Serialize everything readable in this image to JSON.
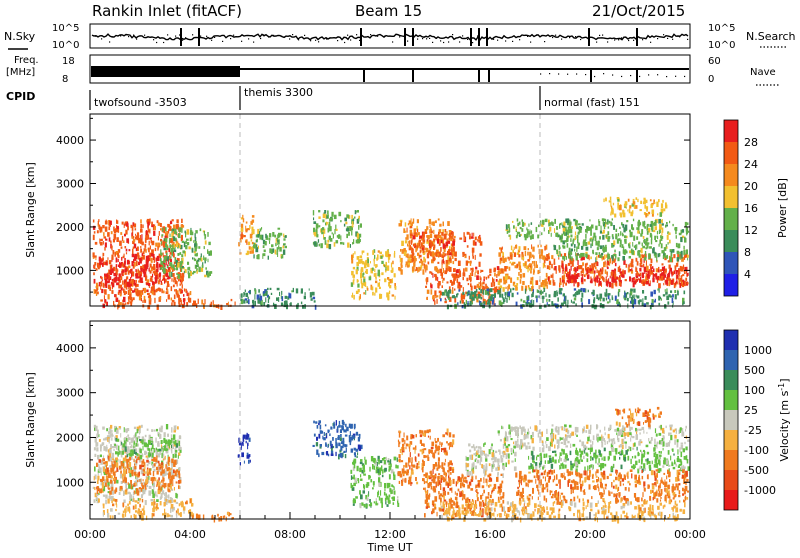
{
  "header": {
    "station": "Rankin Inlet (fitACF)",
    "beam": "Beam 15",
    "date": "21/Oct/2015"
  },
  "noise_panel": {
    "left_label": "N.Sky",
    "left_ticks": [
      "10^5",
      "10^0"
    ],
    "right_label": "N.Search",
    "right_ticks": [
      "10^5",
      "10^0"
    ]
  },
  "freq_panel": {
    "left_label_1": "Freq.",
    "left_label_2": "[MHz]",
    "left_ticks": [
      "18",
      "8"
    ],
    "right_label": "Nave",
    "right_ticks": [
      "60",
      "0"
    ]
  },
  "cpid": {
    "label": "CPID",
    "segments": [
      {
        "name": "twofsound -3503",
        "start_hour": 0
      },
      {
        "name": "themis 3300",
        "start_hour": 6
      },
      {
        "name": "normal (fast) 151",
        "start_hour": 18
      }
    ]
  },
  "colors": {
    "power": [
      "#1f1fe6",
      "#2f55b8",
      "#3a8c5a",
      "#63b04a",
      "#f2c030",
      "#f58a1e",
      "#f25a14",
      "#e81e1e"
    ],
    "velocity": [
      "#1f2fb0",
      "#2f64b0",
      "#3a8c5a",
      "#63c040",
      "#c8c8bc",
      "#f5b040",
      "#f07a1e",
      "#e84a18",
      "#e81a1a"
    ]
  },
  "chart_data": [
    {
      "type": "heatmap",
      "name": "power",
      "xlabel": "",
      "ylabel": "Slant Range [km]",
      "xlim": [
        0,
        24
      ],
      "ylim": [
        180,
        4600
      ],
      "yticks": [
        1000,
        2000,
        3000,
        4000
      ],
      "colorbar": {
        "label": "Power [dB]",
        "range": [
          0,
          32
        ],
        "ticks": [
          "4",
          "8",
          "12",
          "16",
          "20",
          "24",
          "28"
        ]
      },
      "regions": [
        {
          "x0": 0.1,
          "x1": 3.7,
          "y0": 500,
          "y1": 2200,
          "level": 6
        },
        {
          "x0": 0.3,
          "x1": 3.2,
          "y0": 700,
          "y1": 1400,
          "level": 7
        },
        {
          "x0": 0.4,
          "x1": 4.0,
          "y0": 200,
          "y1": 600,
          "level": 6
        },
        {
          "x0": 2.8,
          "x1": 4.8,
          "y0": 900,
          "y1": 2000,
          "level": 3
        },
        {
          "x0": 4.0,
          "x1": 5.8,
          "y0": 200,
          "y1": 350,
          "level": 6
        },
        {
          "x0": 5.9,
          "x1": 6.5,
          "y0": 1400,
          "y1": 2300,
          "level": 5
        },
        {
          "x0": 6.5,
          "x1": 7.8,
          "y0": 1300,
          "y1": 2000,
          "level": 3
        },
        {
          "x0": 6.0,
          "x1": 9.0,
          "y0": 200,
          "y1": 600,
          "level": 2
        },
        {
          "x0": 8.9,
          "x1": 10.8,
          "y0": 1600,
          "y1": 2400,
          "level": 3
        },
        {
          "x0": 10.4,
          "x1": 12.2,
          "y0": 400,
          "y1": 1500,
          "level": 4
        },
        {
          "x0": 12.3,
          "x1": 14.5,
          "y0": 1000,
          "y1": 2200,
          "level": 5
        },
        {
          "x0": 12.8,
          "x1": 15.6,
          "y0": 1200,
          "y1": 1900,
          "level": 6
        },
        {
          "x0": 13.4,
          "x1": 16.4,
          "y0": 300,
          "y1": 1100,
          "level": 6
        },
        {
          "x0": 16.3,
          "x1": 18.4,
          "y0": 600,
          "y1": 1600,
          "level": 5
        },
        {
          "x0": 16.6,
          "x1": 19.6,
          "y0": 1800,
          "y1": 2200,
          "level": 3
        },
        {
          "x0": 18.2,
          "x1": 23.9,
          "y0": 700,
          "y1": 1400,
          "level": 6
        },
        {
          "x0": 19.0,
          "x1": 23.9,
          "y0": 700,
          "y1": 1100,
          "level": 7
        },
        {
          "x0": 18.5,
          "x1": 23.9,
          "y0": 1300,
          "y1": 2200,
          "level": 3
        },
        {
          "x0": 20.5,
          "x1": 23.0,
          "y0": 2300,
          "y1": 2700,
          "level": 4
        },
        {
          "x0": 14.0,
          "x1": 23.8,
          "y0": 200,
          "y1": 600,
          "level": 2
        }
      ]
    },
    {
      "type": "heatmap",
      "name": "velocity",
      "xlabel": "Time UT",
      "ylabel": "Slant Range [km]",
      "xlim": [
        0,
        24
      ],
      "ylim": [
        180,
        4600
      ],
      "yticks": [
        1000,
        2000,
        3000,
        4000
      ],
      "xticks": [
        "00:00",
        "04:00",
        "08:00",
        "12:00",
        "16:00",
        "20:00",
        "00:00"
      ],
      "colorbar": {
        "label": "Velocity [m s",
        "label_exp": "-1",
        "ticks": [
          "1000",
          "500",
          "100",
          "25",
          "-25",
          "-100",
          "-500",
          "-1000"
        ]
      },
      "regions": [
        {
          "x0": 0.1,
          "x1": 3.6,
          "y0": 600,
          "y1": 2300,
          "level": 4
        },
        {
          "x0": 0.2,
          "x1": 3.6,
          "y0": 800,
          "y1": 1600,
          "level": 6
        },
        {
          "x0": 1.0,
          "x1": 3.6,
          "y0": 1600,
          "y1": 2000,
          "level": 3
        },
        {
          "x0": 0.5,
          "x1": 4.2,
          "y0": 250,
          "y1": 650,
          "level": 5
        },
        {
          "x0": 4.2,
          "x1": 5.8,
          "y0": 200,
          "y1": 350,
          "level": 6
        },
        {
          "x0": 5.9,
          "x1": 6.4,
          "y0": 1400,
          "y1": 2200,
          "level": 0
        },
        {
          "x0": 8.9,
          "x1": 10.8,
          "y0": 1600,
          "y1": 2400,
          "level": 1
        },
        {
          "x0": 10.4,
          "x1": 12.3,
          "y0": 500,
          "y1": 1600,
          "level": 3
        },
        {
          "x0": 12.3,
          "x1": 14.5,
          "y0": 1000,
          "y1": 2200,
          "level": 6
        },
        {
          "x0": 13.3,
          "x1": 16.5,
          "y0": 300,
          "y1": 1200,
          "level": 6
        },
        {
          "x0": 15.0,
          "x1": 17.0,
          "y0": 1200,
          "y1": 1900,
          "level": 4
        },
        {
          "x0": 16.3,
          "x1": 23.9,
          "y0": 1800,
          "y1": 2300,
          "level": 4
        },
        {
          "x0": 17.5,
          "x1": 23.9,
          "y0": 1300,
          "y1": 1800,
          "level": 3
        },
        {
          "x0": 17.0,
          "x1": 23.9,
          "y0": 600,
          "y1": 1300,
          "level": 6
        },
        {
          "x0": 21.0,
          "x1": 22.8,
          "y0": 2300,
          "y1": 2700,
          "level": 6
        },
        {
          "x0": 14.0,
          "x1": 23.8,
          "y0": 200,
          "y1": 600,
          "level": 5
        }
      ]
    }
  ]
}
